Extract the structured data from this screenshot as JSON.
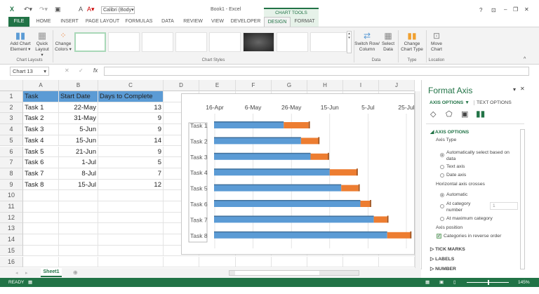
{
  "window": {
    "title": "Book1 - Excel",
    "font_box": "Calibri (Body",
    "context_tab_group": "CHART TOOLS",
    "controls": [
      "?",
      "restore-ribbon",
      "–",
      "❐",
      "✕"
    ]
  },
  "tabs": [
    "FILE",
    "HOME",
    "INSERT",
    "PAGE LAYOUT",
    "FORMULAS",
    "DATA",
    "REVIEW",
    "VIEW",
    "DEVELOPER",
    "DESIGN",
    "FORMAT"
  ],
  "active_tab": "DESIGN",
  "ribbon": {
    "add_chart_element": "Add Chart Element ▾",
    "quick_layout": "Quick Layout ▾",
    "change_colors": "Change Colors ▾",
    "group_chart_layouts": "Chart Layouts",
    "group_chart_styles": "Chart Styles",
    "switch_row_col": "Switch Row/ Column",
    "select_data": "Select Data",
    "group_data": "Data",
    "change_chart_type": "Change Chart Type",
    "group_type": "Type",
    "move_chart": "Move Chart",
    "group_location": "Location"
  },
  "formula_bar": {
    "name_box": "Chart 13",
    "fx": "fx",
    "value": ""
  },
  "sheet": {
    "columns": [
      "A",
      "B",
      "C",
      "D",
      "E",
      "F",
      "G",
      "H",
      "I",
      "J"
    ],
    "rows": [
      "1",
      "2",
      "3",
      "4",
      "5",
      "6",
      "7",
      "8",
      "9",
      "10",
      "11",
      "12",
      "13",
      "14",
      "15",
      "16"
    ],
    "header": [
      "Task",
      "Start Date",
      "Days to Complete"
    ],
    "data": [
      [
        "Task 1",
        "22-May",
        "13"
      ],
      [
        "Task 2",
        "31-May",
        "9"
      ],
      [
        "Task 3",
        "5-Jun",
        "9"
      ],
      [
        "Task 4",
        "15-Jun",
        "14"
      ],
      [
        "Task 5",
        "21-Jun",
        "9"
      ],
      [
        "Task 6",
        "1-Jul",
        "5"
      ],
      [
        "Task 7",
        "8-Jul",
        "7"
      ],
      [
        "Task 8",
        "15-Jul",
        "12"
      ]
    ],
    "sheet_tab": "Sheet1"
  },
  "chart_data": {
    "type": "bar",
    "orientation": "horizontal stacked",
    "categories": [
      "Task 1",
      "Task 2",
      "Task 3",
      "Task 4",
      "Task 5",
      "Task 6",
      "Task 7",
      "Task 8"
    ],
    "series": [
      {
        "values": [
          "2014-05-22",
          "2014-05-31",
          "2014-06-05",
          "2014-06-15",
          "2014-06-21",
          "2014-07-01",
          "2014-07-08",
          "2014-07-15"
        ],
        "color": "#5b9bd5"
      },
      {
        "values": [
          13,
          9,
          9,
          14,
          9,
          5,
          7,
          12
        ],
        "color": "#ed7d31"
      }
    ],
    "x_ticks": [
      "16-Apr",
      "6-May",
      "26-May",
      "15-Jun",
      "5-Jul",
      "25-Jul"
    ],
    "xlim": [
      "2014-04-16",
      "2014-07-25"
    ],
    "x_axis_position": "top",
    "categories_reversed": true,
    "grid": true,
    "legend": "none"
  },
  "panel": {
    "title": "Format Axis",
    "tab_axis": "AXIS OPTIONS ▼",
    "tab_text": "TEXT OPTIONS",
    "section": "AXIS OPTIONS",
    "axis_type": "Axis Type",
    "opt_auto": "Automatically select based on data",
    "opt_text": "Text axis",
    "opt_date": "Date axis",
    "crosses": "Horizontal axis crosses",
    "opt_automatic": "Automatic",
    "opt_at_cat": "At category number",
    "at_cat_value": "1",
    "opt_max": "At maximum category",
    "axis_position": "Axis position",
    "reverse": "Categories in reverse order",
    "reverse_checked": true,
    "tick_marks": "TICK MARKS",
    "labels": "LABELS",
    "number": "NUMBER"
  },
  "status": {
    "ready": "READY",
    "zoom": "145%"
  }
}
